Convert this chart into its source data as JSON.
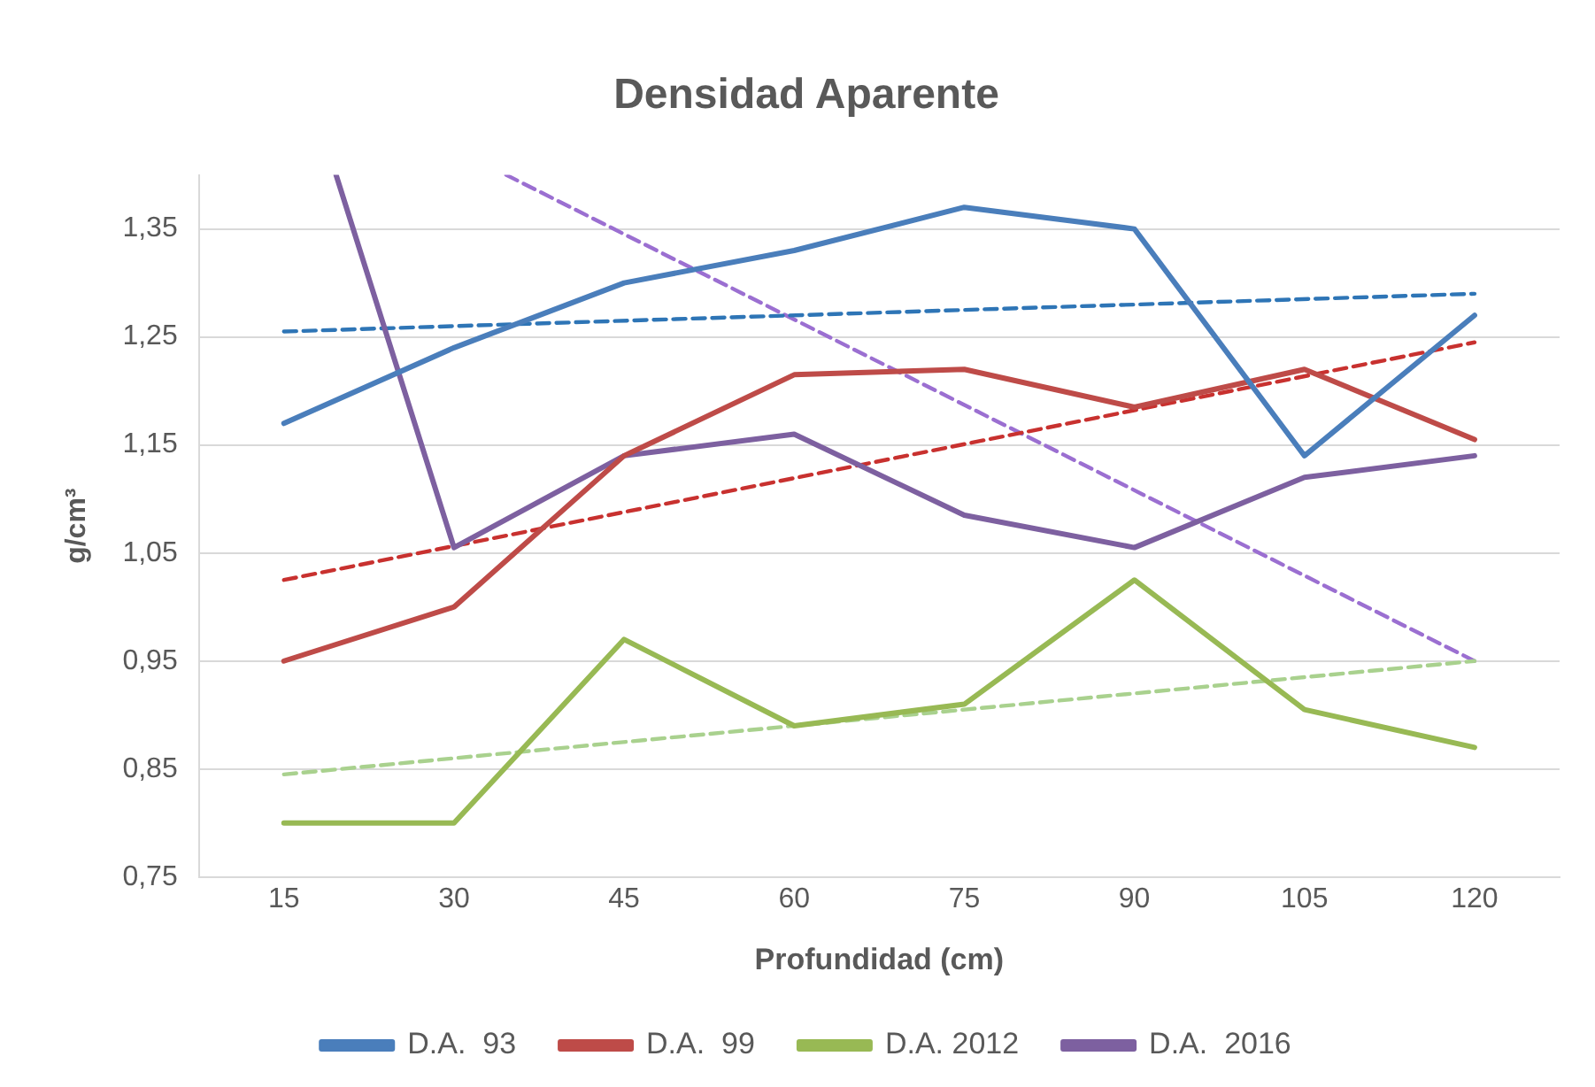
{
  "chart_data": {
    "type": "line",
    "title": "Densidad Aparente",
    "xlabel": "Profundidad (cm)",
    "ylabel": "g/cm³",
    "x": [
      15,
      30,
      45,
      60,
      75,
      90,
      105,
      120
    ],
    "xlim": [
      7.5,
      127.5
    ],
    "xticks": [
      15,
      30,
      45,
      60,
      75,
      90,
      105,
      120
    ],
    "ylim": [
      0.75,
      1.4
    ],
    "yticks": [
      {
        "value": 0.75,
        "label": "0,75"
      },
      {
        "value": 0.85,
        "label": "0,85"
      },
      {
        "value": 0.95,
        "label": "0,95"
      },
      {
        "value": 1.05,
        "label": "1,05"
      },
      {
        "value": 1.15,
        "label": "1,15"
      },
      {
        "value": 1.25,
        "label": "1,25"
      },
      {
        "value": 1.35,
        "label": "1,35"
      }
    ],
    "grid": "y",
    "legend": "bottom",
    "marker": "none",
    "series": [
      {
        "name": "D.A.  93",
        "color": "#4a7ebb",
        "line_style": "solid",
        "values": [
          1.17,
          1.24,
          1.3,
          1.33,
          1.37,
          1.35,
          1.14,
          1.27
        ]
      },
      {
        "name": "D.A.  99",
        "color": "#be4b48",
        "line_style": "solid",
        "values": [
          0.95,
          1.0,
          1.14,
          1.215,
          1.22,
          1.185,
          1.22,
          1.155
        ]
      },
      {
        "name": "D.A. 2012",
        "color": "#98b954",
        "line_style": "solid",
        "values": [
          0.8,
          0.8,
          0.97,
          0.89,
          0.91,
          1.025,
          0.905,
          0.87
        ]
      },
      {
        "name": "D.A.  2016",
        "color": "#7d60a0",
        "line_style": "solid",
        "x": [
          19.6,
          30,
          45,
          60,
          75,
          90,
          105,
          120
        ],
        "values": [
          1.4,
          1.055,
          1.14,
          1.16,
          1.085,
          1.055,
          1.12,
          1.14
        ]
      },
      {
        "color": "#2e75b6",
        "line_style": "dashed",
        "x": [
          15,
          120
        ],
        "values": [
          1.255,
          1.29
        ]
      },
      {
        "color": "#c8312f",
        "line_style": "dashed",
        "x": [
          15,
          120
        ],
        "values": [
          1.025,
          1.245
        ]
      },
      {
        "color": "#a9d18e",
        "line_style": "dashed",
        "x": [
          15,
          120
        ],
        "values": [
          0.845,
          0.95
        ]
      },
      {
        "color": "#9b6fd1",
        "line_style": "dashed",
        "x": [
          34.6,
          120
        ],
        "values": [
          1.4,
          0.95
        ]
      }
    ]
  }
}
